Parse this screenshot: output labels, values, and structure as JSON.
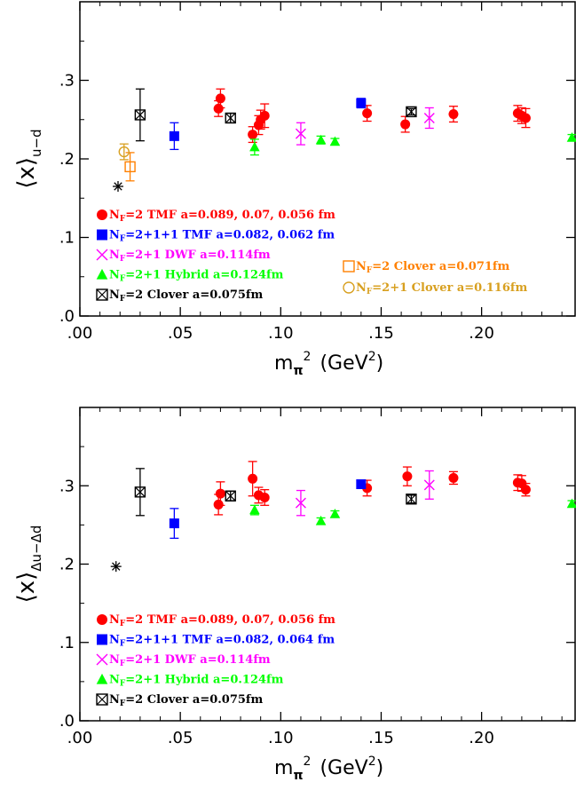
{
  "chart_data": [
    {
      "type": "scatter",
      "panel": "top",
      "ylabel_main": "⟨x⟩",
      "ylabel_sub": "u−d",
      "xlabel_main": "m",
      "xlabel_sub": "π",
      "xlabel_sup": "2",
      "xlabel_unit": "(GeV",
      "xlabel_unit_sup": "2",
      "xlabel_unit_end": ")",
      "xlim": [
        0.0,
        0.247
      ],
      "ylim": [
        0.0,
        0.4
      ],
      "xticks": [
        ".00",
        ".05",
        ".10",
        ".15",
        ".20"
      ],
      "xtick_values": [
        0.0,
        0.05,
        0.1,
        0.15,
        0.2
      ],
      "yticks": [
        ".0",
        ".1",
        ".2",
        ".3"
      ],
      "ytick_values": [
        0.0,
        0.1,
        0.2,
        0.3
      ],
      "series": [
        {
          "name": "N_F=2 TMF a=0.089, 0.07, 0.056 fm",
          "marker": "circle",
          "color": "#ff0000",
          "points": [
            [
              0.069,
              0.264,
              0.01
            ],
            [
              0.07,
              0.277,
              0.012
            ],
            [
              0.086,
              0.231,
              0.01
            ],
            [
              0.089,
              0.243,
              0.012
            ],
            [
              0.092,
              0.255,
              0.015
            ],
            [
              0.09,
              0.25,
              0.012
            ],
            [
              0.143,
              0.258,
              0.01
            ],
            [
              0.162,
              0.244,
              0.01
            ],
            [
              0.186,
              0.257,
              0.01
            ],
            [
              0.218,
              0.258,
              0.01
            ],
            [
              0.22,
              0.255,
              0.01
            ],
            [
              0.222,
              0.252,
              0.012
            ]
          ]
        },
        {
          "name": "N_F=2+1+1 TMF a=0.082, 0.062 fm",
          "marker": "square",
          "color": "#0000ff",
          "points": [
            [
              0.047,
              0.229,
              0.017
            ],
            [
              0.14,
              0.271,
              0.006
            ]
          ]
        },
        {
          "name": "N_F=2+1 DWF a=0.114fm",
          "marker": "cross",
          "color": "#ff00ff",
          "points": [
            [
              0.11,
              0.232,
              0.014
            ],
            [
              0.174,
              0.252,
              0.013
            ]
          ]
        },
        {
          "name": "N_F=2+1 Hybrid a=0.124fm",
          "marker": "triangle",
          "color": "#00ff00",
          "points": [
            [
              0.087,
              0.215,
              0.01
            ],
            [
              0.12,
              0.224,
              0.005
            ],
            [
              0.127,
              0.222,
              0.004
            ],
            [
              0.245,
              0.227,
              0.004
            ]
          ]
        },
        {
          "name": "N_F=2 Clover a=0.075fm",
          "marker": "boxx",
          "color": "#000000",
          "points": [
            [
              0.03,
              0.256,
              0.033
            ],
            [
              0.075,
              0.252,
              0.006
            ],
            [
              0.165,
              0.26,
              0.004
            ]
          ]
        },
        {
          "name": "N_F=2 Clover a=0.071fm",
          "marker": "opensquare",
          "color": "#ff8000",
          "points": [
            [
              0.025,
              0.19,
              0.018
            ]
          ]
        },
        {
          "name": "N_F=2+1 Clover a=0.116fm",
          "marker": "opencircle",
          "color": "#d8a020",
          "points": [
            [
              0.022,
              0.209,
              0.01
            ]
          ]
        },
        {
          "name": "",
          "marker": "star",
          "color": "#000000",
          "points": [
            [
              0.019,
              0.165,
              0
            ]
          ]
        }
      ],
      "legend_left": [
        {
          "marker": "circle",
          "color": "#ff0000",
          "prefix": "N",
          "sub": "F",
          "text": "=2 TMF  a=0.089, 0.07, 0.056 fm"
        },
        {
          "marker": "square",
          "color": "#0000ff",
          "prefix": "N",
          "sub": "F",
          "text": "=2+1+1 TMF  a=0.082, 0.062 fm"
        },
        {
          "marker": "cross",
          "color": "#ff00ff",
          "prefix": "N",
          "sub": "F",
          "text": "=2+1 DWF a=0.114fm"
        },
        {
          "marker": "triangle",
          "color": "#00ff00",
          "prefix": "N",
          "sub": "F",
          "text": "=2+1 Hybrid a=0.124fm"
        },
        {
          "marker": "boxx",
          "color": "#000000",
          "prefix": "N",
          "sub": "F",
          "text": "=2 Clover a=0.075fm"
        }
      ],
      "legend_right": [
        {
          "marker": "opensquare",
          "color": "#ff8000",
          "prefix": "N",
          "sub": "F",
          "text": "=2 Clover a=0.071fm"
        },
        {
          "marker": "opencircle",
          "color": "#d8a020",
          "prefix": "N",
          "sub": "F",
          "text": "=2+1 Clover a=0.116fm"
        }
      ]
    },
    {
      "type": "scatter",
      "panel": "bottom",
      "ylabel_main": "⟨x⟩",
      "ylabel_sub": "Δu−Δd",
      "xlabel_main": "m",
      "xlabel_sub": "π",
      "xlabel_sup": "2",
      "xlabel_unit": "(GeV",
      "xlabel_unit_sup": "2",
      "xlabel_unit_end": ")",
      "xlim": [
        0.0,
        0.247
      ],
      "ylim": [
        0.0,
        0.4
      ],
      "xticks": [
        ".00",
        ".05",
        ".10",
        ".15",
        ".20"
      ],
      "xtick_values": [
        0.0,
        0.05,
        0.1,
        0.15,
        0.2
      ],
      "yticks": [
        ".0",
        ".1",
        ".2",
        ".3"
      ],
      "ytick_values": [
        0.0,
        0.1,
        0.2,
        0.3
      ],
      "series": [
        {
          "name": "N_F=2 TMF a=0.089, 0.07, 0.056 fm",
          "marker": "circle",
          "color": "#ff0000",
          "points": [
            [
              0.069,
              0.276,
              0.013
            ],
            [
              0.07,
              0.29,
              0.015
            ],
            [
              0.086,
              0.309,
              0.022
            ],
            [
              0.089,
              0.288,
              0.01
            ],
            [
              0.092,
              0.285,
              0.01
            ],
            [
              0.143,
              0.297,
              0.01
            ],
            [
              0.163,
              0.312,
              0.012
            ],
            [
              0.186,
              0.31,
              0.008
            ],
            [
              0.218,
              0.304,
              0.01
            ],
            [
              0.22,
              0.303,
              0.01
            ],
            [
              0.222,
              0.295,
              0.008
            ]
          ]
        },
        {
          "name": "N_F=2+1+1 TMF a=0.082, 0.064 fm",
          "marker": "square",
          "color": "#0000ff",
          "points": [
            [
              0.047,
              0.252,
              0.019
            ],
            [
              0.14,
              0.302,
              0.005
            ]
          ]
        },
        {
          "name": "N_F=2+1 DWF a=0.114fm",
          "marker": "cross",
          "color": "#ff00ff",
          "points": [
            [
              0.11,
              0.278,
              0.016
            ],
            [
              0.174,
              0.301,
              0.018
            ]
          ]
        },
        {
          "name": "N_F=2+1 Hybrid a=0.124fm",
          "marker": "triangle",
          "color": "#00ff00",
          "points": [
            [
              0.087,
              0.269,
              0.006
            ],
            [
              0.12,
              0.255,
              0.004
            ],
            [
              0.127,
              0.264,
              0.004
            ],
            [
              0.245,
              0.277,
              0.004
            ]
          ]
        },
        {
          "name": "N_F=2 Clover a=0.075fm",
          "marker": "boxx",
          "color": "#000000",
          "points": [
            [
              0.03,
              0.292,
              0.03
            ],
            [
              0.075,
              0.287,
              0.006
            ],
            [
              0.165,
              0.283,
              0.005
            ]
          ]
        },
        {
          "name": "",
          "marker": "star",
          "color": "#000000",
          "points": [
            [
              0.018,
              0.197,
              0
            ]
          ]
        }
      ],
      "legend_left": [
        {
          "marker": "circle",
          "color": "#ff0000",
          "prefix": "N",
          "sub": "F",
          "text": "=2 TMF   a=0.089, 0.07, 0.056 fm"
        },
        {
          "marker": "square",
          "color": "#0000ff",
          "prefix": "N",
          "sub": "F",
          "text": "=2+1+1 TMF a=0.082, 0.064 fm"
        },
        {
          "marker": "cross",
          "color": "#ff00ff",
          "prefix": "N",
          "sub": "F",
          "text": "=2+1 DWF a=0.114fm"
        },
        {
          "marker": "triangle",
          "color": "#00ff00",
          "prefix": "N",
          "sub": "F",
          "text": "=2+1 Hybrid a=0.124fm"
        },
        {
          "marker": "boxx",
          "color": "#000000",
          "prefix": "N",
          "sub": "F",
          "text": "=2 Clover a=0.075fm"
        }
      ],
      "legend_right": []
    }
  ]
}
